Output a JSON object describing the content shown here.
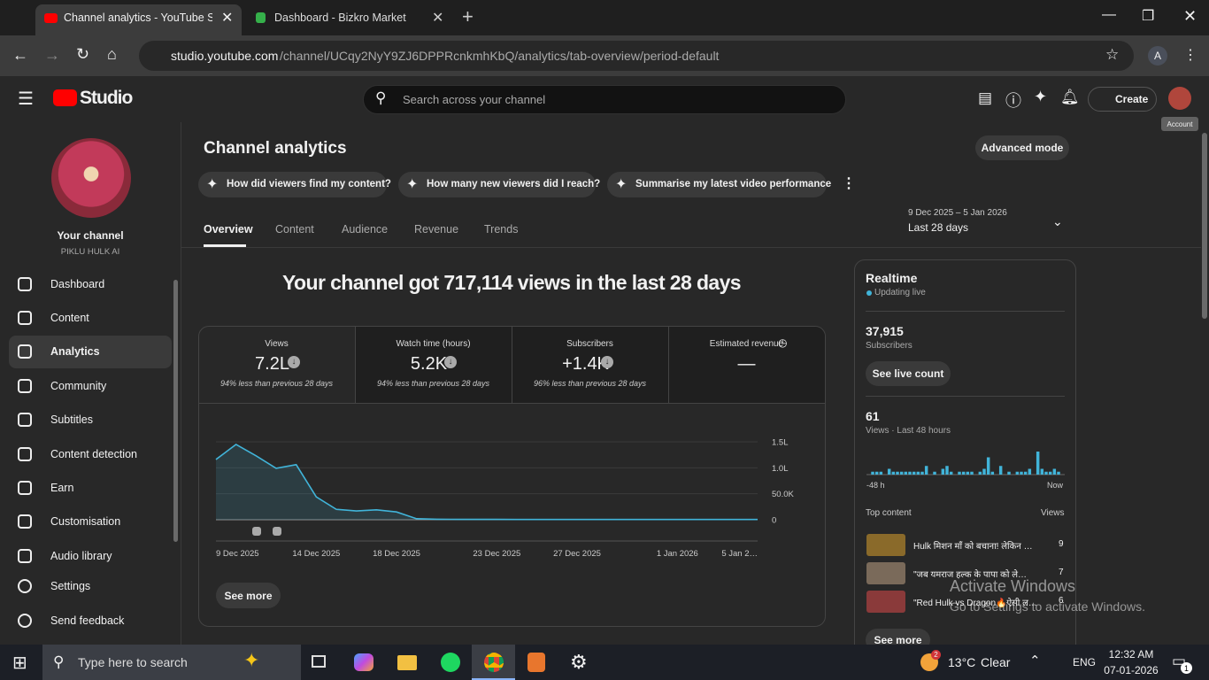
{
  "browser": {
    "tabs": [
      "Channel analytics - YouTube St",
      "Dashboard - Bizkro Market"
    ],
    "url_host": "studio.youtube.com",
    "url_path": "/channel/UCqy2NyY9ZJ6DPPRcnkmhKbQ/analytics/tab-overview/period-default",
    "profile": "A"
  },
  "header": {
    "logo": "Studio",
    "search": "Search across your channel",
    "create": "Create",
    "tooltip": "Account"
  },
  "sidebar": {
    "channel": "Your channel",
    "handle": "PIKLU HULK AI",
    "nav": [
      "Dashboard",
      "Content",
      "Analytics",
      "Community",
      "Subtitles",
      "Content detection",
      "Earn",
      "Customisation",
      "Audio library"
    ],
    "active": "Analytics",
    "bottom": [
      "Settings",
      "Send feedback"
    ]
  },
  "analytics": {
    "title": "Channel analytics",
    "advanced": "Advanced mode",
    "prompts": [
      "How did viewers find my content?",
      "How many new viewers did I reach?",
      "Summarise my latest video performance"
    ],
    "tabs": [
      "Overview",
      "Content",
      "Audience",
      "Revenue",
      "Trends"
    ],
    "period_range": "9 Dec 2025 – 5 Jan 2026",
    "period": "Last 28 days",
    "headline": "Your channel got 717,114 views in the last 28 days",
    "metrics": [
      {
        "label": "Views",
        "value": "7.2L",
        "note": "94% less than previous 28 days"
      },
      {
        "label": "Watch time (hours)",
        "value": "5.2K",
        "note": "94% less than previous 28 days"
      },
      {
        "label": "Subscribers",
        "value": "+1.4K",
        "note": "96% less than previous 28 days"
      },
      {
        "label": "Estimated revenue",
        "value": "—"
      }
    ],
    "chart": {
      "type": "line",
      "x": [
        "9 Dec 2025",
        null,
        null,
        null,
        null,
        "14 Dec 2025",
        null,
        null,
        null,
        "18 Dec 2025",
        null,
        null,
        null,
        null,
        "23 Dec 2025",
        null,
        null,
        null,
        "27 Dec 2025",
        null,
        null,
        null,
        null,
        "1 Jan 2026",
        null,
        null,
        null,
        "5 Jan 2…"
      ],
      "values": [
        116000,
        145000,
        123000,
        99000,
        106000,
        44000,
        20000,
        17000,
        19000,
        15000,
        2000,
        1000,
        800,
        700,
        700,
        600,
        600,
        600,
        600,
        600,
        500,
        500,
        500,
        500,
        500,
        500,
        500,
        500
      ],
      "color": "#41b4d9",
      "ylim": [
        0,
        150000
      ],
      "yticks": [
        0,
        {
          "value": 50000,
          "label": "50.0K"
        },
        {
          "value": 100000,
          "label": "1.0L"
        },
        {
          "value": 150000,
          "label": "1.5L"
        }
      ],
      "grid": true
    },
    "see_more": "See more"
  },
  "realtime": {
    "title": "Realtime",
    "status": "Updating live",
    "subscribers": "37,915",
    "subscribers_label": "Subscribers",
    "see_live": "See live count",
    "views": "61",
    "views_label": "Views · Last 48 hours",
    "axis_start": "-48 h",
    "axis_end": "Now",
    "bars": [
      0,
      1,
      1,
      1,
      0,
      2,
      1,
      1,
      1,
      1,
      1,
      1,
      1,
      1,
      3,
      0,
      1,
      0,
      2,
      3,
      1,
      0,
      1,
      1,
      1,
      1,
      0,
      1,
      2,
      6,
      1,
      0,
      3,
      0,
      1,
      0,
      1,
      1,
      1,
      2,
      0,
      8,
      2,
      1,
      1,
      2,
      1,
      0
    ],
    "bar_color": "#41b4d9",
    "top_content": "Top content",
    "views_col": "Views",
    "items": [
      {
        "title": "Hulk मिशन माँ को बचाना! लेकिन …",
        "views": "9"
      },
      {
        "title": "\"जब यमराज हल्क के पापा को ले…",
        "views": "7"
      },
      {
        "title": "\"Red Hulk vs Dragon🔥ऐसी ल…",
        "views": "6"
      }
    ],
    "see_more": "See more"
  },
  "watermark": {
    "title": "Activate Windows",
    "text": "Go to Settings to activate Windows."
  },
  "taskbar": {
    "search": "Type here to search",
    "weather_badge": "2",
    "temp": "13°C",
    "weather": "Clear",
    "lang": "ENG",
    "time": "12:32 AM",
    "date": "07-01-2026",
    "notifications": "1"
  }
}
